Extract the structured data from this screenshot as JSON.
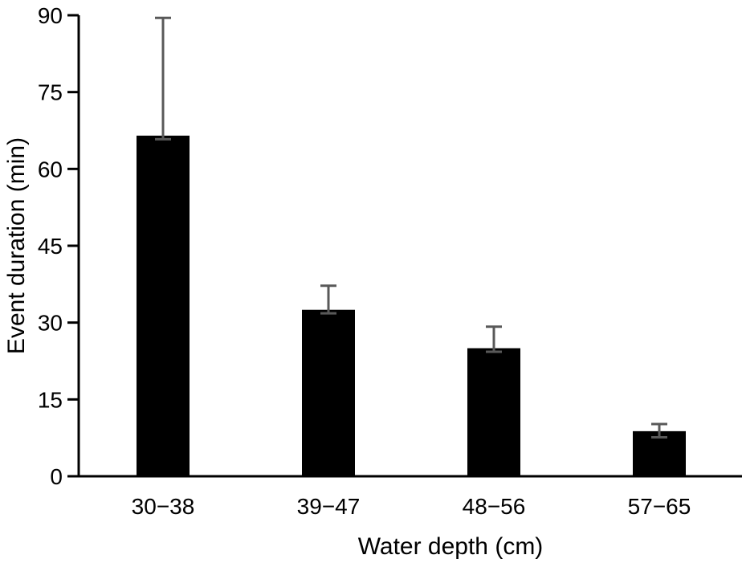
{
  "chart_data": {
    "type": "bar",
    "title": "",
    "xlabel": "Water depth (cm)",
    "ylabel": "Event duration (min)",
    "categories": [
      "30−38",
      "39−47",
      "48−56",
      "57−65"
    ],
    "values": [
      66.5,
      32.5,
      25.0,
      8.8
    ],
    "error_upper": [
      89.5,
      37.2,
      29.2,
      10.2
    ],
    "error_lower": [
      65.8,
      31.8,
      24.3,
      7.6
    ],
    "ylim": [
      0,
      90
    ],
    "yticks": [
      "0",
      "15",
      "30",
      "45",
      "60",
      "75",
      "90"
    ],
    "ytick_values": [
      0,
      15,
      30,
      45,
      60,
      75,
      90
    ],
    "grid": false,
    "legend": "none",
    "colors": {
      "bar": "#000000",
      "error_bar": "#595959",
      "axis": "#000000"
    }
  }
}
